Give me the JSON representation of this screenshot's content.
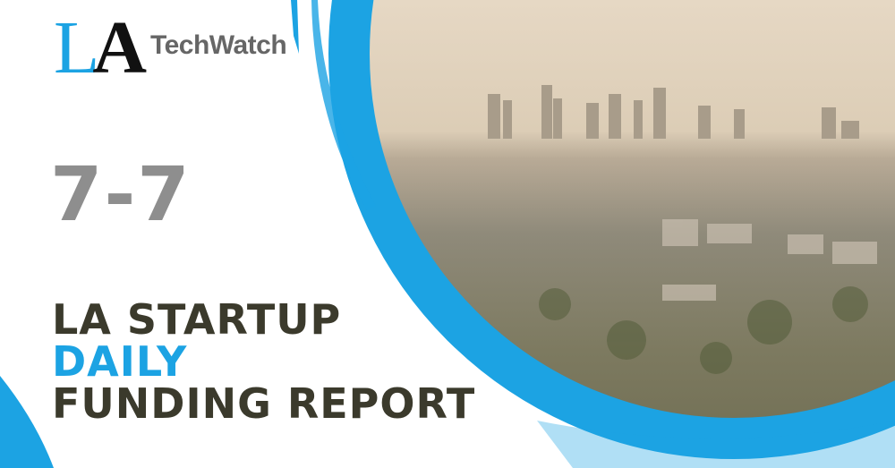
{
  "logo": {
    "mark_l": "L",
    "mark_a": "A",
    "wordmark": "TechWatch"
  },
  "date": "7-7",
  "title": {
    "line1": "LA STARTUP",
    "line2": "DAILY",
    "line3": "FUNDING REPORT"
  },
  "colors": {
    "accent_blue": "#1ca3e3",
    "title_dark": "#3b3a2c",
    "date_gray": "#8e8e8e"
  },
  "image": {
    "subject": "city-skyline-photo"
  }
}
